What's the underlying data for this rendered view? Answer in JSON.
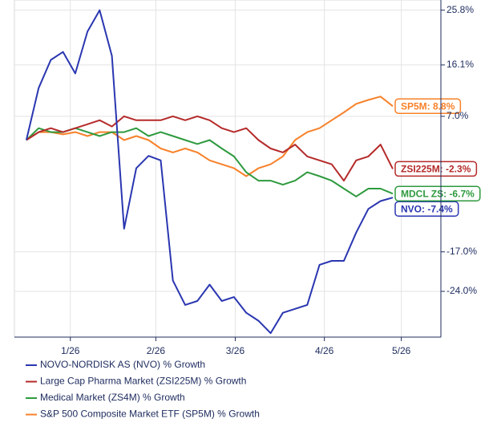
{
  "chart_data": {
    "type": "line",
    "x": [
      0,
      1,
      2,
      3,
      4,
      5,
      6,
      7,
      8,
      9,
      10,
      11,
      12,
      13,
      14,
      15,
      16,
      17,
      18,
      19,
      20,
      21,
      22,
      23,
      24,
      25,
      26,
      27,
      28,
      29,
      30
    ],
    "xlim": [
      -0.98,
      33.94
    ],
    "xticks": [
      {
        "value": 3.6,
        "label": "1/26"
      },
      {
        "value": 10.6,
        "label": "2/26"
      },
      {
        "value": 17.1,
        "label": "3/26"
      },
      {
        "value": 24.4,
        "label": "4/26"
      },
      {
        "value": 30.7,
        "label": "5/26"
      }
    ],
    "ylim": [
      -32.1,
      27.6
    ],
    "yticks": [
      {
        "value": 25.8,
        "label": "25.8%"
      },
      {
        "value": 16.1,
        "label": "16.1%"
      },
      {
        "value": 7.0,
        "label": "7.0%"
      },
      {
        "value": -17.0,
        "label": "-17.0%"
      },
      {
        "value": -24.0,
        "label": "-24.0%"
      }
    ],
    "grid": true,
    "series": [
      {
        "name": "NOVO-NORDISK AS (NVO) % Growth",
        "color": "#2a36b0",
        "end_label": "NVO: -7.4%",
        "values": [
          2.8,
          12.0,
          17.0,
          18.4,
          14.6,
          22.0,
          25.8,
          17.7,
          -12.9,
          -2.2,
          0.0,
          -0.8,
          -22.1,
          -26.4,
          -25.7,
          -22.8,
          -25.7,
          -25.0,
          -27.8,
          -29.2,
          -31.4,
          -27.8,
          -27.1,
          -26.4,
          -19.3,
          -18.6,
          -18.6,
          -13.6,
          -9.4,
          -8.0,
          -7.4
        ]
      },
      {
        "name": "Large Cap Pharma Market (ZSI225M) % Growth",
        "color": "#b52a2a",
        "end_label": "ZSI225M: -2.3%",
        "values": [
          2.8,
          4.2,
          4.9,
          4.2,
          4.9,
          5.6,
          6.3,
          5.2,
          7.0,
          6.3,
          6.3,
          6.3,
          7.0,
          6.3,
          7.0,
          6.3,
          4.9,
          4.2,
          4.9,
          2.8,
          1.3,
          0.6,
          2.0,
          -0.1,
          -0.8,
          -1.5,
          -4.4,
          -0.8,
          -0.1,
          2.0,
          -2.3
        ]
      },
      {
        "name": "Medical Market (ZS4M) % Growth",
        "color": "#2e9a3e",
        "end_label": "MDCL ZS: -6.7%",
        "values": [
          2.8,
          4.9,
          4.2,
          4.2,
          4.9,
          4.2,
          3.5,
          4.2,
          4.2,
          4.9,
          3.5,
          4.2,
          3.5,
          2.8,
          2.1,
          2.8,
          1.3,
          -0.1,
          -2.9,
          -4.4,
          -4.4,
          -5.1,
          -4.4,
          -2.9,
          -3.6,
          -4.4,
          -5.8,
          -7.2,
          -5.8,
          -5.8,
          -6.7
        ]
      },
      {
        "name": "S&P 500 Composite Market ETF (SP5M) % Growth",
        "color": "#f7812a",
        "end_label": "SP5M: 8.8%",
        "values": [
          2.8,
          4.2,
          4.2,
          3.8,
          4.2,
          3.5,
          4.2,
          4.2,
          2.8,
          3.5,
          2.8,
          1.3,
          0.6,
          1.3,
          0.6,
          -0.8,
          -1.5,
          -2.2,
          -3.6,
          -2.2,
          -1.5,
          -0.1,
          2.8,
          4.2,
          4.9,
          6.3,
          7.7,
          9.2,
          9.9,
          10.5,
          8.8
        ]
      }
    ]
  }
}
